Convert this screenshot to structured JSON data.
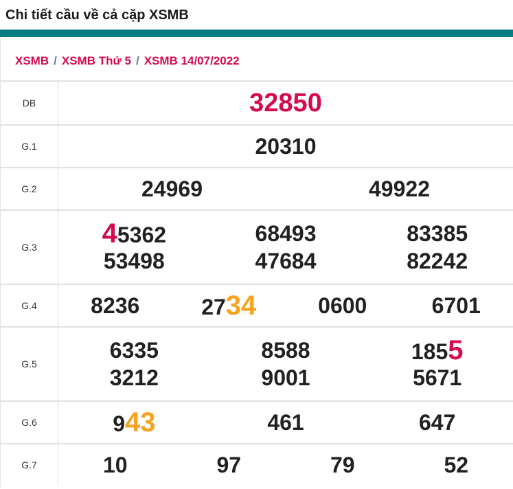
{
  "page": {
    "title": "Chi tiết cầu về cả cặp XSMB"
  },
  "breadcrumb": {
    "separator": "/",
    "items": [
      "XSMB",
      "XSMB Thứ 5",
      "XSMB 14/07/2022"
    ]
  },
  "colors": {
    "teal_bar": "#0a7d84",
    "crimson_highlight": "#d40a4e",
    "orange_highlight": "#f6a41f",
    "number_text": "#212121",
    "label_text": "#333333",
    "grid_line": "#e1e1e1",
    "breadcrumb_separator": "#607c96"
  },
  "table": {
    "rows": [
      {
        "label": "DB",
        "lines": [
          [
            [
              {
                "t": "32850",
                "s": "db"
              }
            ]
          ]
        ]
      },
      {
        "label": "G.1",
        "lines": [
          [
            [
              {
                "t": "20310",
                "s": "n"
              }
            ]
          ]
        ]
      },
      {
        "label": "G.2",
        "lines": [
          [
            [
              {
                "t": "24969",
                "s": "n"
              }
            ],
            [
              {
                "t": "49922",
                "s": "n"
              }
            ]
          ]
        ]
      },
      {
        "label": "G.3",
        "lines": [
          [
            [
              {
                "t": "4",
                "s": "r"
              },
              {
                "t": "5362",
                "s": "n"
              }
            ],
            [
              {
                "t": "68493",
                "s": "n"
              }
            ],
            [
              {
                "t": "83385",
                "s": "n"
              }
            ]
          ],
          [
            [
              {
                "t": "53498",
                "s": "n"
              }
            ],
            [
              {
                "t": "47684",
                "s": "n"
              }
            ],
            [
              {
                "t": "82242",
                "s": "n"
              }
            ]
          ]
        ]
      },
      {
        "label": "G.4",
        "lines": [
          [
            [
              {
                "t": "8236",
                "s": "n"
              }
            ],
            [
              {
                "t": "27",
                "s": "n"
              },
              {
                "t": "34",
                "s": "o"
              }
            ],
            [
              {
                "t": "0600",
                "s": "n"
              }
            ],
            [
              {
                "t": "6701",
                "s": "n"
              }
            ]
          ]
        ]
      },
      {
        "label": "G.5",
        "lines": [
          [
            [
              {
                "t": "6335",
                "s": "n"
              }
            ],
            [
              {
                "t": "8588",
                "s": "n"
              }
            ],
            [
              {
                "t": "185",
                "s": "n"
              },
              {
                "t": "5",
                "s": "r"
              }
            ]
          ],
          [
            [
              {
                "t": "3212",
                "s": "n"
              }
            ],
            [
              {
                "t": "9001",
                "s": "n"
              }
            ],
            [
              {
                "t": "5671",
                "s": "n"
              }
            ]
          ]
        ]
      },
      {
        "label": "G.6",
        "lines": [
          [
            [
              {
                "t": "9",
                "s": "n"
              },
              {
                "t": "43",
                "s": "o"
              }
            ],
            [
              {
                "t": "461",
                "s": "n"
              }
            ],
            [
              {
                "t": "647",
                "s": "n"
              }
            ]
          ]
        ]
      },
      {
        "label": "G.7",
        "lines": [
          [
            [
              {
                "t": "10",
                "s": "n"
              }
            ],
            [
              {
                "t": "97",
                "s": "n"
              }
            ],
            [
              {
                "t": "79",
                "s": "n"
              }
            ],
            [
              {
                "t": "52",
                "s": "n"
              }
            ]
          ]
        ]
      }
    ]
  }
}
